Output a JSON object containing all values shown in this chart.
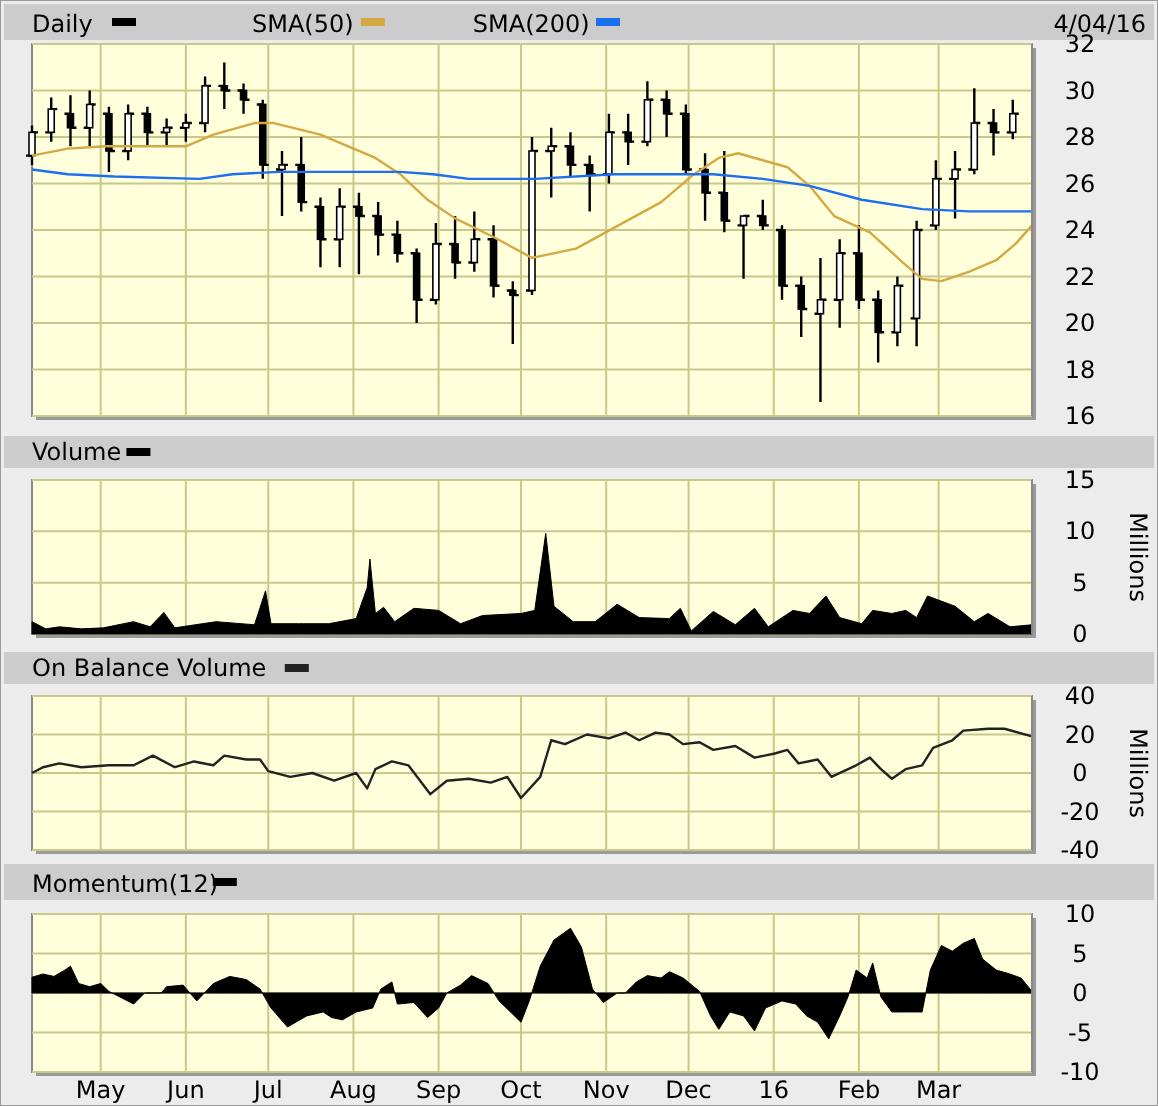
{
  "chart_data": [
    {
      "type": "candlestick",
      "annotations": [
        "4/04/16"
      ],
      "legend": "top",
      "grid": true,
      "tick_labels": "y",
      "xlim": [
        "2015-04-06",
        "2016-04-04"
      ],
      "xticks": [
        {
          "value": "2015-05-01",
          "label": null
        },
        {
          "value": "2015-06-01",
          "label": null
        },
        {
          "value": "2015-07-01",
          "label": null
        },
        {
          "value": "2015-08-01",
          "label": null
        },
        {
          "value": "2015-09-01",
          "label": null
        },
        {
          "value": "2015-10-01",
          "label": null
        },
        {
          "value": "2015-11-01",
          "label": null
        },
        {
          "value": "2015-12-01",
          "label": null
        },
        {
          "value": "2016-01-01",
          "label": null
        },
        {
          "value": "2016-02-01",
          "label": null
        },
        {
          "value": "2016-03-01",
          "label": null
        }
      ],
      "ylim": [
        16,
        32
      ],
      "yticks": [
        16,
        18,
        20,
        22,
        24,
        26,
        28,
        30,
        32
      ],
      "series": [
        {
          "name": "Daily",
          "color": "#000000",
          "x": [
            "2015-04-06",
            "2015-04-13",
            "2015-04-20",
            "2015-04-27",
            "2015-05-04",
            "2015-05-11",
            "2015-05-18",
            "2015-05-25",
            "2015-06-01",
            "2015-06-08",
            "2015-06-15",
            "2015-06-22",
            "2015-06-29",
            "2015-07-06",
            "2015-07-13",
            "2015-07-20",
            "2015-07-27",
            "2015-08-03",
            "2015-08-10",
            "2015-08-17",
            "2015-08-24",
            "2015-08-31",
            "2015-09-07",
            "2015-09-14",
            "2015-09-21",
            "2015-09-28",
            "2015-10-05",
            "2015-10-12",
            "2015-10-19",
            "2015-10-26",
            "2015-11-02",
            "2015-11-09",
            "2015-11-16",
            "2015-11-23",
            "2015-11-30",
            "2015-12-07",
            "2015-12-14",
            "2015-12-21",
            "2015-12-28",
            "2016-01-04",
            "2016-01-11",
            "2016-01-18",
            "2016-01-25",
            "2016-02-01",
            "2016-02-08",
            "2016-02-15",
            "2016-02-22",
            "2016-02-29",
            "2016-03-07",
            "2016-03-14",
            "2016-03-21",
            "2016-03-28"
          ],
          "ohlc": [
            [
              27.2,
              28.5,
              26.8,
              28.2
            ],
            [
              28.2,
              29.7,
              27.8,
              29.2
            ],
            [
              29,
              29.8,
              27.6,
              28.4
            ],
            [
              28.4,
              30,
              27.6,
              29.4
            ],
            [
              29,
              29.3,
              26.5,
              27.4
            ],
            [
              27.4,
              29.4,
              27,
              29
            ],
            [
              29,
              29.3,
              27.6,
              28.2
            ],
            [
              28.2,
              28.8,
              27.6,
              28.4
            ],
            [
              28.4,
              29,
              27.8,
              28.6
            ],
            [
              28.6,
              30.6,
              28.2,
              30.2
            ],
            [
              30.2,
              31.2,
              29.2,
              30
            ],
            [
              30,
              30.3,
              29,
              29.6
            ],
            [
              29.4,
              29.6,
              26.2,
              26.8
            ],
            [
              26.6,
              27.4,
              24.6,
              26.8
            ],
            [
              26.8,
              28,
              24.8,
              25.2
            ],
            [
              25,
              25.4,
              22.4,
              23.6
            ],
            [
              23.6,
              25.8,
              22.4,
              25
            ],
            [
              25,
              25.6,
              22.1,
              24.6
            ],
            [
              24.6,
              25.2,
              22.9,
              23.8
            ],
            [
              23.8,
              24.4,
              22.6,
              23
            ],
            [
              23,
              23.2,
              20,
              21
            ],
            [
              21,
              24.3,
              20.8,
              23.4
            ],
            [
              23.4,
              24.6,
              21.9,
              22.6
            ],
            [
              22.6,
              24.8,
              22.2,
              23.6
            ],
            [
              23.6,
              24.2,
              21.1,
              21.6
            ],
            [
              21.4,
              21.8,
              19.1,
              21.2
            ],
            [
              21.4,
              28,
              21.2,
              27.4
            ],
            [
              27.4,
              28.4,
              25.4,
              27.6
            ],
            [
              27.6,
              28.2,
              26.3,
              26.8
            ],
            [
              26.8,
              27.2,
              24.8,
              26.4
            ],
            [
              26.4,
              29,
              26,
              28.2
            ],
            [
              28.2,
              29,
              26.8,
              27.8
            ],
            [
              27.8,
              30.4,
              27.6,
              29.6
            ],
            [
              29.6,
              30,
              28,
              29
            ],
            [
              29,
              29.4,
              26.4,
              26.6
            ],
            [
              26.6,
              27.3,
              24.4,
              25.6
            ],
            [
              25.6,
              27.4,
              23.9,
              24.4
            ],
            [
              24.2,
              24.6,
              21.9,
              24.6
            ],
            [
              24.6,
              25.3,
              24,
              24.2
            ],
            [
              24,
              24.2,
              21,
              21.6
            ],
            [
              21.6,
              22,
              19.4,
              20.6
            ],
            [
              20.4,
              22.8,
              16.6,
              21
            ],
            [
              21,
              23.6,
              19.8,
              23
            ],
            [
              23,
              24.2,
              20.6,
              21
            ],
            [
              21,
              21.4,
              18.3,
              19.6
            ],
            [
              19.6,
              22,
              19,
              21.6
            ],
            [
              20.2,
              24.4,
              19,
              24
            ],
            [
              24.2,
              27,
              24,
              26.2
            ],
            [
              26.2,
              27.4,
              24.5,
              26.6
            ],
            [
              26.6,
              30.1,
              26.4,
              28.6
            ],
            [
              28.6,
              29.2,
              27.2,
              28.2
            ],
            [
              28.2,
              29.6,
              27.9,
              29
            ]
          ]
        },
        {
          "name": "SMA(50)",
          "type": "line",
          "color": "#d4a843",
          "x": [
            "2015-04-06",
            "2015-04-19",
            "2015-05-03",
            "2015-06-01",
            "2015-06-11",
            "2015-06-26",
            "2015-07-03",
            "2015-07-20",
            "2015-08-09",
            "2015-08-18",
            "2015-08-28",
            "2015-09-07",
            "2015-09-21",
            "2015-10-05",
            "2015-10-21",
            "2015-11-04",
            "2015-11-21",
            "2015-12-03",
            "2015-12-12",
            "2015-12-19",
            "2015-12-28",
            "2016-01-06",
            "2016-01-14",
            "2016-01-23",
            "2016-02-05",
            "2016-02-17",
            "2016-02-24",
            "2016-03-02",
            "2016-03-12",
            "2016-03-22",
            "2016-03-29",
            "2016-04-04"
          ],
          "values": [
            27.2,
            27.5,
            27.6,
            27.6,
            28.1,
            28.6,
            28.6,
            28.1,
            27.1,
            26.4,
            25.3,
            24.5,
            23.7,
            22.8,
            23.2,
            24.1,
            25.2,
            26.4,
            27.1,
            27.3,
            27,
            26.7,
            25.9,
            24.6,
            23.9,
            22.6,
            21.9,
            21.8,
            22.2,
            22.7,
            23.4,
            24.2
          ]
        },
        {
          "name": "SMA(200)",
          "type": "line",
          "color": "#1e6ef0",
          "x": [
            "2015-04-06",
            "2015-04-19",
            "2015-05-06",
            "2015-06-06",
            "2015-06-18",
            "2015-07-05",
            "2015-08-18",
            "2015-08-30",
            "2015-09-12",
            "2015-10-06",
            "2015-11-04",
            "2015-11-26",
            "2015-12-10",
            "2015-12-28",
            "2016-01-14",
            "2016-02-02",
            "2016-02-24",
            "2016-03-12",
            "2016-04-04"
          ],
          "values": [
            26.6,
            26.4,
            26.3,
            26.2,
            26.4,
            26.5,
            26.5,
            26.4,
            26.2,
            26.2,
            26.4,
            26.4,
            26.4,
            26.2,
            25.9,
            25.3,
            24.9,
            24.8,
            24.8
          ]
        }
      ]
    },
    {
      "type": "area",
      "legend": "top",
      "grid": true,
      "tick_labels": "y",
      "ylabel": "Millions",
      "xlim": [
        "2015-04-06",
        "2016-04-04"
      ],
      "xticks": [
        {
          "value": "2015-05-01",
          "label": null
        },
        {
          "value": "2015-06-01",
          "label": null
        },
        {
          "value": "2015-07-01",
          "label": null
        },
        {
          "value": "2015-08-01",
          "label": null
        },
        {
          "value": "2015-09-01",
          "label": null
        },
        {
          "value": "2015-10-01",
          "label": null
        },
        {
          "value": "2015-11-01",
          "label": null
        },
        {
          "value": "2015-12-01",
          "label": null
        },
        {
          "value": "2016-01-01",
          "label": null
        },
        {
          "value": "2016-02-01",
          "label": null
        },
        {
          "value": "2016-03-01",
          "label": null
        }
      ],
      "ylim": [
        0,
        15
      ],
      "yticks": [
        0,
        5,
        10,
        15
      ],
      "series": [
        {
          "name": "Volume",
          "color": "#000000",
          "x": [
            "2015-04-06",
            "2015-04-11",
            "2015-04-16",
            "2015-04-24",
            "2015-05-02",
            "2015-05-13",
            "2015-05-19",
            "2015-05-24",
            "2015-05-28",
            "2015-06-12",
            "2015-06-26",
            "2015-06-30",
            "2015-07-02",
            "2015-07-12",
            "2015-07-23",
            "2015-08-02",
            "2015-08-06",
            "2015-08-07",
            "2015-08-09",
            "2015-08-12",
            "2015-08-16",
            "2015-08-23",
            "2015-09-01",
            "2015-09-09",
            "2015-09-17",
            "2015-10-01",
            "2015-10-06",
            "2015-10-10",
            "2015-10-13",
            "2015-10-20",
            "2015-10-28",
            "2015-11-05",
            "2015-11-13",
            "2015-11-24",
            "2015-11-28",
            "2015-12-02",
            "2015-12-10",
            "2015-12-18",
            "2015-12-25",
            "2015-12-30",
            "2016-01-08",
            "2016-01-14",
            "2016-01-20",
            "2016-01-25",
            "2016-02-02",
            "2016-02-06",
            "2016-02-13",
            "2016-02-18",
            "2016-02-22",
            "2016-02-26",
            "2016-03-07",
            "2016-03-14",
            "2016-03-19",
            "2016-03-27",
            "2016-04-04"
          ],
          "values": [
            1.2,
            0.5,
            0.7,
            0.5,
            0.6,
            1.2,
            0.7,
            2.1,
            0.6,
            1.2,
            0.9,
            4.2,
            1,
            1,
            1,
            1.5,
            4.5,
            7.3,
            2,
            2.6,
            1.2,
            2.5,
            2.3,
            1,
            1.8,
            2,
            2.3,
            9.8,
            2.7,
            1.2,
            1.2,
            2.9,
            1.6,
            1.5,
            2.5,
            0.3,
            2.2,
            0.9,
            2.5,
            0.7,
            2.3,
            2,
            3.7,
            1.6,
            1,
            2.3,
            2,
            2.3,
            1.6,
            3.7,
            2.7,
            1.2,
            2,
            0.7,
            0.9
          ]
        }
      ]
    },
    {
      "type": "line",
      "legend": "top",
      "grid": true,
      "tick_labels": "y",
      "ylabel": "Millions",
      "xlim": [
        "2015-04-06",
        "2016-04-04"
      ],
      "xticks": [
        {
          "value": "2015-05-01",
          "label": null
        },
        {
          "value": "2015-06-01",
          "label": null
        },
        {
          "value": "2015-07-01",
          "label": null
        },
        {
          "value": "2015-08-01",
          "label": null
        },
        {
          "value": "2015-09-01",
          "label": null
        },
        {
          "value": "2015-10-01",
          "label": null
        },
        {
          "value": "2015-11-01",
          "label": null
        },
        {
          "value": "2015-12-01",
          "label": null
        },
        {
          "value": "2016-01-01",
          "label": null
        },
        {
          "value": "2016-02-01",
          "label": null
        },
        {
          "value": "2016-03-01",
          "label": null
        }
      ],
      "ylim": [
        -40,
        40
      ],
      "yticks": [
        -40,
        -20,
        0,
        20,
        40
      ],
      "series": [
        {
          "name": "On Balance Volume",
          "color": "#222222",
          "x": [
            "2015-04-06",
            "2015-04-10",
            "2015-04-16",
            "2015-04-24",
            "2015-05-04",
            "2015-05-13",
            "2015-05-20",
            "2015-05-28",
            "2015-06-04",
            "2015-06-11",
            "2015-06-15",
            "2015-06-23",
            "2015-06-28",
            "2015-07-01",
            "2015-07-09",
            "2015-07-17",
            "2015-07-25",
            "2015-08-02",
            "2015-08-06",
            "2015-08-09",
            "2015-08-15",
            "2015-08-21",
            "2015-08-29",
            "2015-09-04",
            "2015-09-12",
            "2015-09-20",
            "2015-09-26",
            "2015-10-01",
            "2015-10-08",
            "2015-10-12",
            "2015-10-17",
            "2015-10-25",
            "2015-11-02",
            "2015-11-08",
            "2015-11-13",
            "2015-11-19",
            "2015-11-24",
            "2015-11-29",
            "2015-12-05",
            "2015-12-10",
            "2015-12-18",
            "2015-12-25",
            "2016-01-01",
            "2016-01-06",
            "2016-01-10",
            "2016-01-17",
            "2016-01-22",
            "2016-01-31",
            "2016-02-05",
            "2016-02-09",
            "2016-02-13",
            "2016-02-18",
            "2016-02-24",
            "2016-02-28",
            "2016-03-06",
            "2016-03-10",
            "2016-03-19",
            "2016-03-25",
            "2016-04-04"
          ],
          "values": [
            0,
            3,
            5,
            3,
            4,
            4,
            9,
            3,
            6,
            4,
            9,
            7,
            7,
            1,
            -2,
            0,
            -4,
            0,
            -8,
            2,
            6,
            4,
            -11,
            -4,
            -3,
            -5,
            -2,
            -13,
            -2,
            17,
            15,
            20,
            18,
            21,
            17,
            21,
            20,
            15,
            16,
            12,
            14,
            8,
            10,
            12,
            5,
            7,
            -2,
            4,
            8,
            2,
            -3,
            2,
            4,
            13,
            17,
            22,
            23,
            23,
            19
          ]
        }
      ]
    },
    {
      "type": "area",
      "legend": "top",
      "grid": true,
      "xlim": [
        "2015-04-06",
        "2016-04-04"
      ],
      "xticks": [
        {
          "value": "2015-05-01",
          "label": "May"
        },
        {
          "value": "2015-06-01",
          "label": "Jun"
        },
        {
          "value": "2015-07-01",
          "label": "Jul"
        },
        {
          "value": "2015-08-01",
          "label": "Aug"
        },
        {
          "value": "2015-09-01",
          "label": "Sep"
        },
        {
          "value": "2015-10-01",
          "label": "Oct"
        },
        {
          "value": "2015-11-01",
          "label": "Nov"
        },
        {
          "value": "2015-12-01",
          "label": "Dec"
        },
        {
          "value": "2016-01-01",
          "label": "16"
        },
        {
          "value": "2016-02-01",
          "label": "Feb"
        },
        {
          "value": "2016-03-01",
          "label": "Mar"
        }
      ],
      "ylim": [
        -10,
        10
      ],
      "yticks": [
        -10,
        -5,
        0,
        5,
        10
      ],
      "series": [
        {
          "name": "Momentum(12)",
          "color": "#000000",
          "x": [
            "2015-04-06",
            "2015-04-10",
            "2015-04-14",
            "2015-04-18",
            "2015-04-20",
            "2015-04-23",
            "2015-04-27",
            "2015-05-01",
            "2015-05-04",
            "2015-05-08",
            "2015-05-13",
            "2015-05-17",
            "2015-05-23",
            "2015-05-25",
            "2015-05-31",
            "2015-06-05",
            "2015-06-11",
            "2015-06-17",
            "2015-06-23",
            "2015-06-28",
            "2015-07-02",
            "2015-07-08",
            "2015-07-15",
            "2015-07-21",
            "2015-07-24",
            "2015-07-28",
            "2015-08-02",
            "2015-08-08",
            "2015-08-11",
            "2015-08-15",
            "2015-08-17",
            "2015-08-23",
            "2015-08-28",
            "2015-09-01",
            "2015-09-04",
            "2015-09-09",
            "2015-09-13",
            "2015-09-19",
            "2015-09-23",
            "2015-10-01",
            "2015-10-04",
            "2015-10-08",
            "2015-10-13",
            "2015-10-19",
            "2015-10-23",
            "2015-10-27",
            "2015-10-31",
            "2015-11-05",
            "2015-11-08",
            "2015-11-12",
            "2015-11-16",
            "2015-11-21",
            "2015-11-24",
            "2015-11-29",
            "2015-12-05",
            "2015-12-09",
            "2015-12-12",
            "2015-12-16",
            "2015-12-21",
            "2015-12-25",
            "2015-12-29",
            "2016-01-04",
            "2016-01-09",
            "2016-01-13",
            "2016-01-17",
            "2016-01-21",
            "2016-01-25",
            "2016-01-28",
            "2016-01-31",
            "2016-02-04",
            "2016-02-06",
            "2016-02-09",
            "2016-02-13",
            "2016-02-18",
            "2016-02-24",
            "2016-02-27",
            "2016-03-02",
            "2016-03-06",
            "2016-03-10",
            "2016-03-14",
            "2016-03-17",
            "2016-03-22",
            "2016-03-27",
            "2016-03-31",
            "2016-04-04"
          ],
          "values": [
            2,
            2.4,
            2.1,
            2.9,
            3.4,
            1.2,
            0.8,
            1.2,
            0.2,
            -0.5,
            -1.4,
            0,
            0,
            0.8,
            1,
            -1,
            1.2,
            2.1,
            1.7,
            0.5,
            -1.9,
            -4.3,
            -2.9,
            -2.4,
            -3.1,
            -3.4,
            -2.4,
            -1.9,
            0.5,
            1.4,
            -1.4,
            -1.2,
            -3.1,
            -1.9,
            0,
            1,
            2.2,
            1.2,
            -1,
            -3.7,
            -1,
            3.4,
            6.7,
            8.2,
            5.8,
            0.5,
            -1.2,
            0,
            0,
            1.4,
            2.2,
            1.9,
            2.7,
            1.9,
            0.2,
            -2.9,
            -4.6,
            -2.4,
            -2.9,
            -4.8,
            -1.9,
            -1,
            -1.4,
            -2.9,
            -3.7,
            -5.8,
            -2.9,
            -0.5,
            2.9,
            1.9,
            3.8,
            -0.5,
            -2.4,
            -2.4,
            -2.4,
            2.9,
            6,
            5.3,
            6.3,
            6.9,
            4.3,
            2.9,
            2.4,
            1.9,
            0.2
          ]
        }
      ]
    }
  ]
}
